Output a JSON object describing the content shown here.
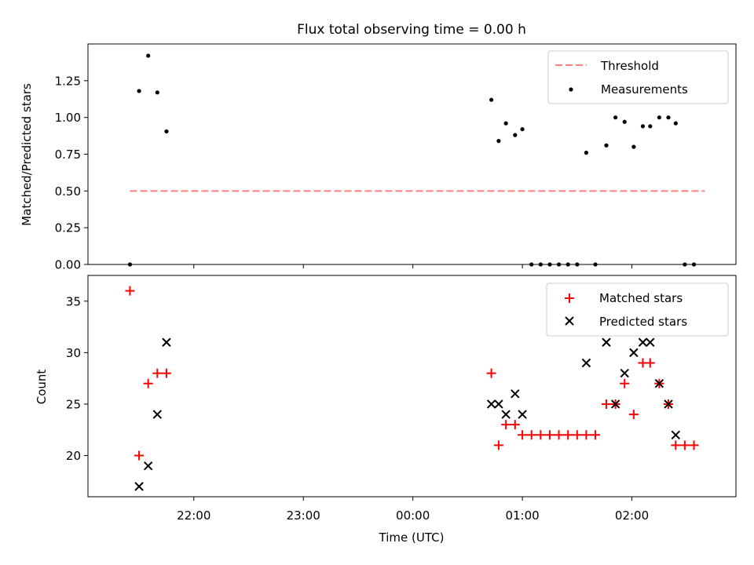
{
  "title": "Flux total observing time = 0.00 h",
  "chart_data": [
    {
      "type": "scatter",
      "panel": "top",
      "ylabel": "Matched/Predicted stars",
      "xlabel": "",
      "ylim": [
        0,
        1.5
      ],
      "yticks": [
        0.0,
        0.25,
        0.5,
        0.75,
        1.0,
        1.25
      ],
      "ytick_labels": [
        "0.00",
        "0.25",
        "0.50",
        "0.75",
        "1.00",
        "1.25"
      ],
      "threshold": {
        "name": "Threshold",
        "value": 0.5,
        "x_start": "21:25",
        "x_end": "02:40",
        "color": "#ff7f7f",
        "style": "dashed"
      },
      "series": [
        {
          "name": "Measurements",
          "color": "#000000",
          "marker": "dot",
          "points": [
            [
              "21:25",
              0.0
            ],
            [
              "21:30",
              1.18
            ],
            [
              "21:35",
              1.42
            ],
            [
              "21:40",
              1.17
            ],
            [
              "21:45",
              0.905
            ],
            [
              "00:43",
              1.12
            ],
            [
              "00:47",
              0.84
            ],
            [
              "00:51",
              0.96
            ],
            [
              "00:56",
              0.88
            ],
            [
              "01:00",
              0.92
            ],
            [
              "01:05",
              0.0
            ],
            [
              "01:10",
              0.0
            ],
            [
              "01:15",
              0.0
            ],
            [
              "01:20",
              0.0
            ],
            [
              "01:25",
              0.0
            ],
            [
              "01:30",
              0.0
            ],
            [
              "01:35",
              0.76
            ],
            [
              "01:40",
              0.0
            ],
            [
              "01:46",
              0.81
            ],
            [
              "01:51",
              1.0
            ],
            [
              "01:56",
              0.97
            ],
            [
              "02:01",
              0.8
            ],
            [
              "02:06",
              0.94
            ],
            [
              "02:10",
              0.94
            ],
            [
              "02:15",
              1.0
            ],
            [
              "02:20",
              1.0
            ],
            [
              "02:24",
              0.96
            ],
            [
              "02:29",
              0.0
            ],
            [
              "02:34",
              0.0
            ]
          ]
        }
      ],
      "legend": {
        "position": "top-right",
        "entries": [
          "Threshold",
          "Measurements"
        ]
      }
    },
    {
      "type": "scatter",
      "panel": "bottom",
      "ylabel": "Count",
      "xlabel": "Time (UTC)",
      "ylim": [
        16,
        37.5
      ],
      "yticks": [
        20,
        25,
        30,
        35
      ],
      "ytick_labels": [
        "20",
        "25",
        "30",
        "35"
      ],
      "xlim": [
        "21:02",
        "02:57"
      ],
      "xticks": [
        "22:00",
        "23:00",
        "00:00",
        "01:00",
        "02:00"
      ],
      "series": [
        {
          "name": "Matched stars",
          "color": "#ff0000",
          "marker": "plus",
          "points": [
            [
              "21:25",
              36
            ],
            [
              "21:30",
              20
            ],
            [
              "21:35",
              27
            ],
            [
              "21:40",
              28
            ],
            [
              "21:45",
              28
            ],
            [
              "00:43",
              28
            ],
            [
              "00:47",
              21
            ],
            [
              "00:51",
              23
            ],
            [
              "00:56",
              23
            ],
            [
              "01:00",
              22
            ],
            [
              "01:05",
              22
            ],
            [
              "01:10",
              22
            ],
            [
              "01:15",
              22
            ],
            [
              "01:20",
              22
            ],
            [
              "01:25",
              22
            ],
            [
              "01:30",
              22
            ],
            [
              "01:35",
              22
            ],
            [
              "01:40",
              22
            ],
            [
              "01:46",
              25
            ],
            [
              "01:51",
              25
            ],
            [
              "01:56",
              27
            ],
            [
              "02:01",
              24
            ],
            [
              "02:06",
              29
            ],
            [
              "02:10",
              29
            ],
            [
              "02:15",
              27
            ],
            [
              "02:20",
              25
            ],
            [
              "02:24",
              21
            ],
            [
              "02:29",
              21
            ],
            [
              "02:34",
              21
            ]
          ]
        },
        {
          "name": "Predicted stars",
          "color": "#000000",
          "marker": "x",
          "points": [
            [
              "21:30",
              17
            ],
            [
              "21:35",
              19
            ],
            [
              "21:40",
              24
            ],
            [
              "21:45",
              31
            ],
            [
              "00:43",
              25
            ],
            [
              "00:47",
              25
            ],
            [
              "00:51",
              24
            ],
            [
              "00:56",
              26
            ],
            [
              "01:00",
              24
            ],
            [
              "01:35",
              29
            ],
            [
              "01:46",
              31
            ],
            [
              "01:51",
              25
            ],
            [
              "01:56",
              28
            ],
            [
              "02:01",
              30
            ],
            [
              "02:06",
              31
            ],
            [
              "02:10",
              31
            ],
            [
              "02:15",
              27
            ],
            [
              "02:20",
              25
            ],
            [
              "02:24",
              22
            ]
          ]
        }
      ],
      "legend": {
        "position": "top-right",
        "entries": [
          "Matched stars",
          "Predicted stars"
        ]
      }
    }
  ]
}
